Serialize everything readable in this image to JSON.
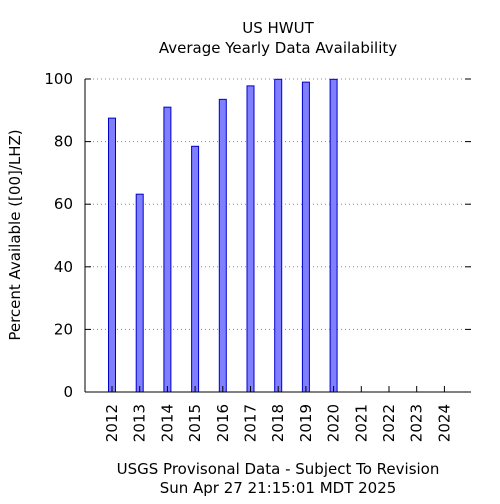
{
  "chart_data": {
    "type": "bar",
    "title": "US HWUT",
    "subtitle": "Average Yearly Data Availability",
    "xlabel": "",
    "ylabel": "Percent Available ([00]/LHZ)",
    "footer_line1": "USGS Provisonal Data - Subject To Revision",
    "footer_line2": "Sun Apr 27 21:15:01 MDT 2025",
    "categories": [
      "2012",
      "2013",
      "2014",
      "2015",
      "2016",
      "2017",
      "2018",
      "2019",
      "2020",
      "2021",
      "2022",
      "2023",
      "2024"
    ],
    "values": [
      87.5,
      63.2,
      91.0,
      78.5,
      93.5,
      97.8,
      99.9,
      99.0,
      99.9,
      null,
      null,
      null,
      null
    ],
    "ylim": [
      0,
      100
    ],
    "yticks": [
      0,
      20,
      40,
      60,
      80,
      100
    ],
    "grid": "horizontal-dotted",
    "bar_color": "#7f7fff",
    "bar_edge_color": "#0000cc"
  }
}
